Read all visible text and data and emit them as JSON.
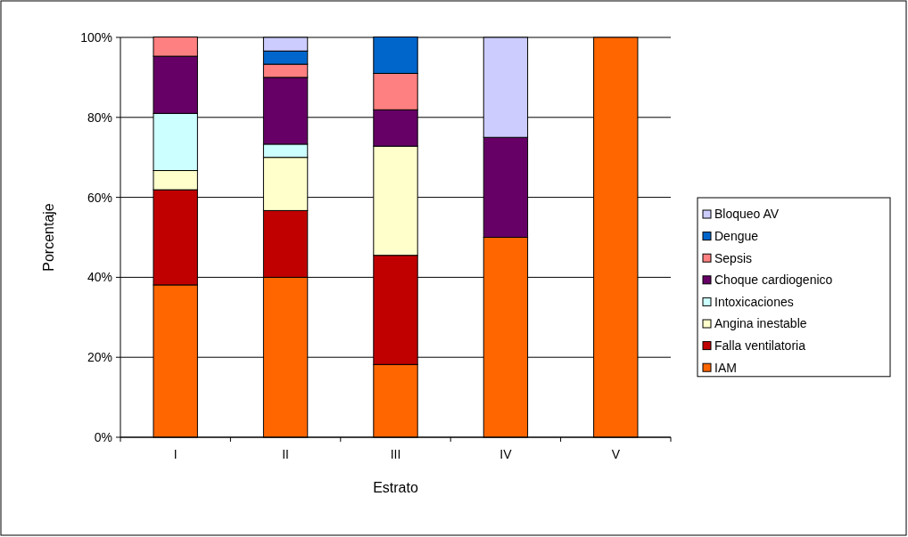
{
  "chart_data": {
    "type": "bar",
    "stacked": true,
    "xlabel": "Estrato",
    "ylabel": "Porcentaje",
    "categories": [
      "I",
      "II",
      "III",
      "IV",
      "V"
    ],
    "series": [
      {
        "name": "IAM",
        "color": "#ff6600",
        "values": [
          38.1,
          40.0,
          18.2,
          50.0,
          100.0
        ]
      },
      {
        "name": "Falla ventilatoria",
        "color": "#c00000",
        "values": [
          23.8,
          16.7,
          27.3,
          null,
          null
        ]
      },
      {
        "name": "Angina inestable",
        "color": "#ffffcc",
        "values": [
          4.8,
          13.3,
          27.3,
          null,
          null
        ]
      },
      {
        "name": "Intoxicaciones",
        "color": "#ccffff",
        "values": [
          14.3,
          3.3,
          null,
          null,
          null
        ]
      },
      {
        "name": "Choque cardiogenico",
        "color": "#660066",
        "values": [
          14.3,
          16.7,
          9.1,
          25.0,
          null
        ]
      },
      {
        "name": "Sepsis",
        "color": "#ff8080",
        "values": [
          4.8,
          3.3,
          9.1,
          null,
          null
        ]
      },
      {
        "name": "Dengue",
        "color": "#0066cc",
        "values": [
          null,
          3.3,
          9.1,
          null,
          null
        ]
      },
      {
        "name": "Bloqueo AV",
        "color": "#ccccff",
        "values": [
          null,
          3.4,
          null,
          25.0,
          null
        ]
      }
    ],
    "ylim": [
      0,
      100
    ],
    "yticks": [
      {
        "value": 0,
        "label": "0%"
      },
      {
        "value": 20,
        "label": "20%"
      },
      {
        "value": 40,
        "label": "40%"
      },
      {
        "value": 60,
        "label": "60%"
      },
      {
        "value": 80,
        "label": "80%"
      },
      {
        "value": 100,
        "label": "100%"
      }
    ],
    "grid": "y",
    "legend": "right"
  }
}
